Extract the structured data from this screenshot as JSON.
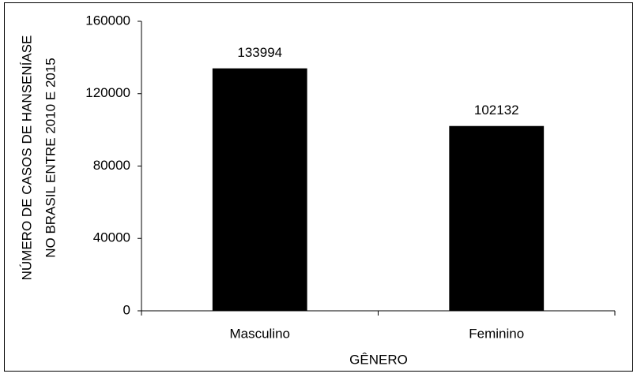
{
  "chart_data": {
    "type": "bar",
    "ylabel": [
      "NÚMERO DE CASOS DE HANSENÍASE",
      "NO BRASIL ENTRE 2010 E 2015"
    ],
    "xlabel": "GÊNERO",
    "categories": [
      "Masculino",
      "Feminino"
    ],
    "values": [
      133994,
      102132
    ],
    "color": "#000000",
    "ylim": [
      0,
      160000
    ],
    "yticks": [
      0,
      40000,
      80000,
      120000,
      160000
    ],
    "grid": false
  }
}
